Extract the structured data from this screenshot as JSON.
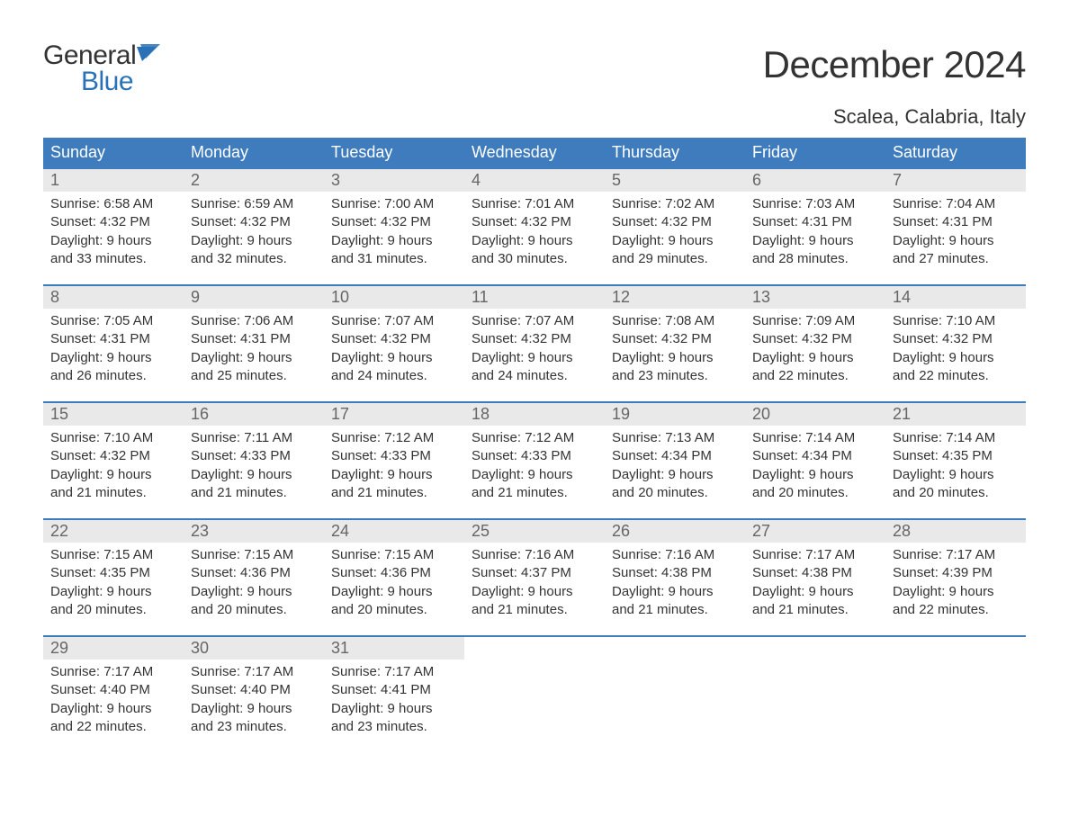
{
  "brand": {
    "general": "General",
    "blue": "Blue",
    "logo_color_dark": "#333333",
    "logo_color_blue": "#2a72b5"
  },
  "title": "December 2024",
  "subtitle": "Scalea, Calabria, Italy",
  "colors": {
    "header_bg": "#3e7cbd",
    "header_text": "#ffffff",
    "daynum_bg": "#e9e9e9",
    "daynum_text": "#666666",
    "body_text": "#333333",
    "row_border": "#3e7cbd",
    "page_bg": "#ffffff"
  },
  "typography": {
    "title_fontsize": 42,
    "subtitle_fontsize": 22,
    "weekday_fontsize": 18,
    "daynum_fontsize": 18,
    "body_fontsize": 15
  },
  "weekdays": [
    "Sunday",
    "Monday",
    "Tuesday",
    "Wednesday",
    "Thursday",
    "Friday",
    "Saturday"
  ],
  "weeks": [
    [
      {
        "num": "1",
        "sunrise": "Sunrise: 6:58 AM",
        "sunset": "Sunset: 4:32 PM",
        "day1": "Daylight: 9 hours",
        "day2": "and 33 minutes."
      },
      {
        "num": "2",
        "sunrise": "Sunrise: 6:59 AM",
        "sunset": "Sunset: 4:32 PM",
        "day1": "Daylight: 9 hours",
        "day2": "and 32 minutes."
      },
      {
        "num": "3",
        "sunrise": "Sunrise: 7:00 AM",
        "sunset": "Sunset: 4:32 PM",
        "day1": "Daylight: 9 hours",
        "day2": "and 31 minutes."
      },
      {
        "num": "4",
        "sunrise": "Sunrise: 7:01 AM",
        "sunset": "Sunset: 4:32 PM",
        "day1": "Daylight: 9 hours",
        "day2": "and 30 minutes."
      },
      {
        "num": "5",
        "sunrise": "Sunrise: 7:02 AM",
        "sunset": "Sunset: 4:32 PM",
        "day1": "Daylight: 9 hours",
        "day2": "and 29 minutes."
      },
      {
        "num": "6",
        "sunrise": "Sunrise: 7:03 AM",
        "sunset": "Sunset: 4:31 PM",
        "day1": "Daylight: 9 hours",
        "day2": "and 28 minutes."
      },
      {
        "num": "7",
        "sunrise": "Sunrise: 7:04 AM",
        "sunset": "Sunset: 4:31 PM",
        "day1": "Daylight: 9 hours",
        "day2": "and 27 minutes."
      }
    ],
    [
      {
        "num": "8",
        "sunrise": "Sunrise: 7:05 AM",
        "sunset": "Sunset: 4:31 PM",
        "day1": "Daylight: 9 hours",
        "day2": "and 26 minutes."
      },
      {
        "num": "9",
        "sunrise": "Sunrise: 7:06 AM",
        "sunset": "Sunset: 4:31 PM",
        "day1": "Daylight: 9 hours",
        "day2": "and 25 minutes."
      },
      {
        "num": "10",
        "sunrise": "Sunrise: 7:07 AM",
        "sunset": "Sunset: 4:32 PM",
        "day1": "Daylight: 9 hours",
        "day2": "and 24 minutes."
      },
      {
        "num": "11",
        "sunrise": "Sunrise: 7:07 AM",
        "sunset": "Sunset: 4:32 PM",
        "day1": "Daylight: 9 hours",
        "day2": "and 24 minutes."
      },
      {
        "num": "12",
        "sunrise": "Sunrise: 7:08 AM",
        "sunset": "Sunset: 4:32 PM",
        "day1": "Daylight: 9 hours",
        "day2": "and 23 minutes."
      },
      {
        "num": "13",
        "sunrise": "Sunrise: 7:09 AM",
        "sunset": "Sunset: 4:32 PM",
        "day1": "Daylight: 9 hours",
        "day2": "and 22 minutes."
      },
      {
        "num": "14",
        "sunrise": "Sunrise: 7:10 AM",
        "sunset": "Sunset: 4:32 PM",
        "day1": "Daylight: 9 hours",
        "day2": "and 22 minutes."
      }
    ],
    [
      {
        "num": "15",
        "sunrise": "Sunrise: 7:10 AM",
        "sunset": "Sunset: 4:32 PM",
        "day1": "Daylight: 9 hours",
        "day2": "and 21 minutes."
      },
      {
        "num": "16",
        "sunrise": "Sunrise: 7:11 AM",
        "sunset": "Sunset: 4:33 PM",
        "day1": "Daylight: 9 hours",
        "day2": "and 21 minutes."
      },
      {
        "num": "17",
        "sunrise": "Sunrise: 7:12 AM",
        "sunset": "Sunset: 4:33 PM",
        "day1": "Daylight: 9 hours",
        "day2": "and 21 minutes."
      },
      {
        "num": "18",
        "sunrise": "Sunrise: 7:12 AM",
        "sunset": "Sunset: 4:33 PM",
        "day1": "Daylight: 9 hours",
        "day2": "and 21 minutes."
      },
      {
        "num": "19",
        "sunrise": "Sunrise: 7:13 AM",
        "sunset": "Sunset: 4:34 PM",
        "day1": "Daylight: 9 hours",
        "day2": "and 20 minutes."
      },
      {
        "num": "20",
        "sunrise": "Sunrise: 7:14 AM",
        "sunset": "Sunset: 4:34 PM",
        "day1": "Daylight: 9 hours",
        "day2": "and 20 minutes."
      },
      {
        "num": "21",
        "sunrise": "Sunrise: 7:14 AM",
        "sunset": "Sunset: 4:35 PM",
        "day1": "Daylight: 9 hours",
        "day2": "and 20 minutes."
      }
    ],
    [
      {
        "num": "22",
        "sunrise": "Sunrise: 7:15 AM",
        "sunset": "Sunset: 4:35 PM",
        "day1": "Daylight: 9 hours",
        "day2": "and 20 minutes."
      },
      {
        "num": "23",
        "sunrise": "Sunrise: 7:15 AM",
        "sunset": "Sunset: 4:36 PM",
        "day1": "Daylight: 9 hours",
        "day2": "and 20 minutes."
      },
      {
        "num": "24",
        "sunrise": "Sunrise: 7:15 AM",
        "sunset": "Sunset: 4:36 PM",
        "day1": "Daylight: 9 hours",
        "day2": "and 20 minutes."
      },
      {
        "num": "25",
        "sunrise": "Sunrise: 7:16 AM",
        "sunset": "Sunset: 4:37 PM",
        "day1": "Daylight: 9 hours",
        "day2": "and 21 minutes."
      },
      {
        "num": "26",
        "sunrise": "Sunrise: 7:16 AM",
        "sunset": "Sunset: 4:38 PM",
        "day1": "Daylight: 9 hours",
        "day2": "and 21 minutes."
      },
      {
        "num": "27",
        "sunrise": "Sunrise: 7:17 AM",
        "sunset": "Sunset: 4:38 PM",
        "day1": "Daylight: 9 hours",
        "day2": "and 21 minutes."
      },
      {
        "num": "28",
        "sunrise": "Sunrise: 7:17 AM",
        "sunset": "Sunset: 4:39 PM",
        "day1": "Daylight: 9 hours",
        "day2": "and 22 minutes."
      }
    ],
    [
      {
        "num": "29",
        "sunrise": "Sunrise: 7:17 AM",
        "sunset": "Sunset: 4:40 PM",
        "day1": "Daylight: 9 hours",
        "day2": "and 22 minutes."
      },
      {
        "num": "30",
        "sunrise": "Sunrise: 7:17 AM",
        "sunset": "Sunset: 4:40 PM",
        "day1": "Daylight: 9 hours",
        "day2": "and 23 minutes."
      },
      {
        "num": "31",
        "sunrise": "Sunrise: 7:17 AM",
        "sunset": "Sunset: 4:41 PM",
        "day1": "Daylight: 9 hours",
        "day2": "and 23 minutes."
      },
      null,
      null,
      null,
      null
    ]
  ]
}
